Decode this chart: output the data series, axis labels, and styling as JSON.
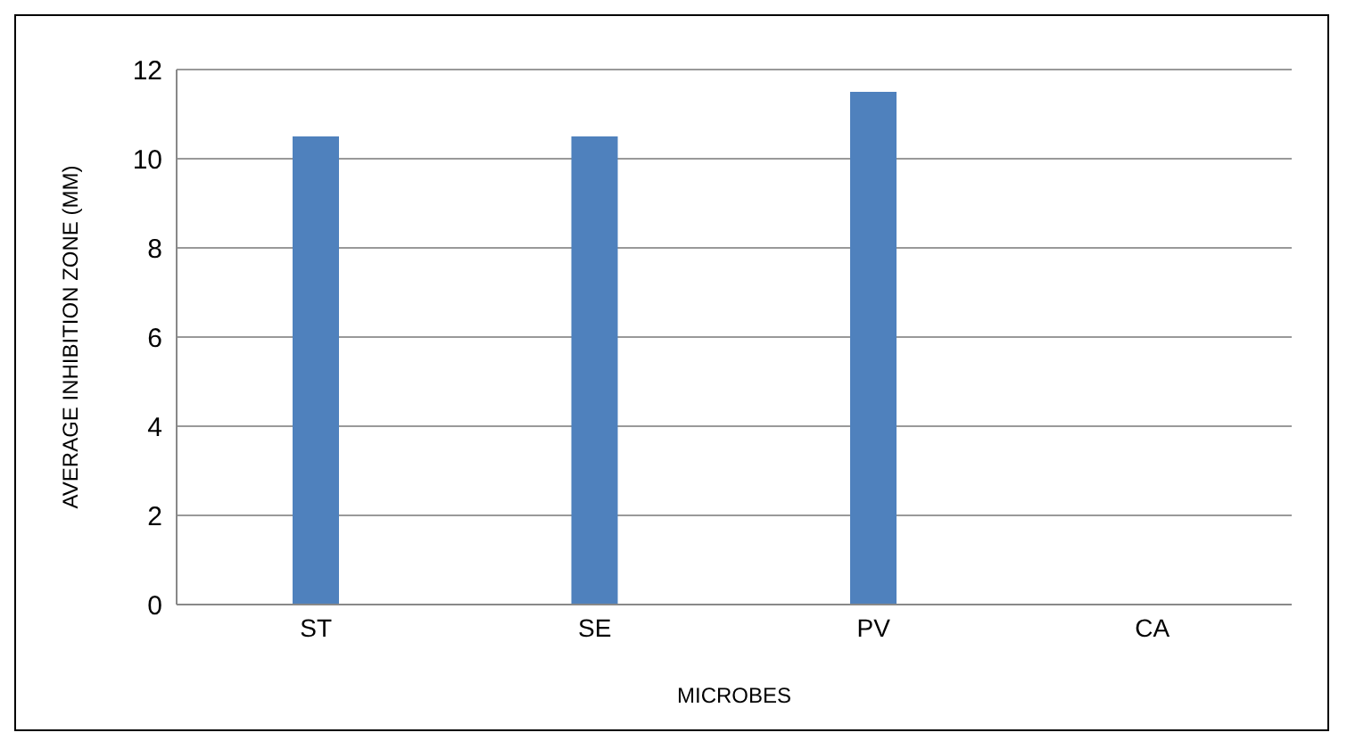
{
  "chart_data": {
    "type": "bar",
    "xlabel": "MICROBES",
    "ylabel": "AVERAGE INHIBITION ZONE (MM)",
    "categories": [
      "ST",
      "SE",
      "PV",
      "CA"
    ],
    "values": [
      10.5,
      10.5,
      11.5,
      0
    ],
    "color": "#4f81bd",
    "ylim": [
      0,
      12
    ],
    "yticks": [
      0,
      2,
      4,
      6,
      8,
      10,
      12
    ],
    "grid": "y"
  }
}
